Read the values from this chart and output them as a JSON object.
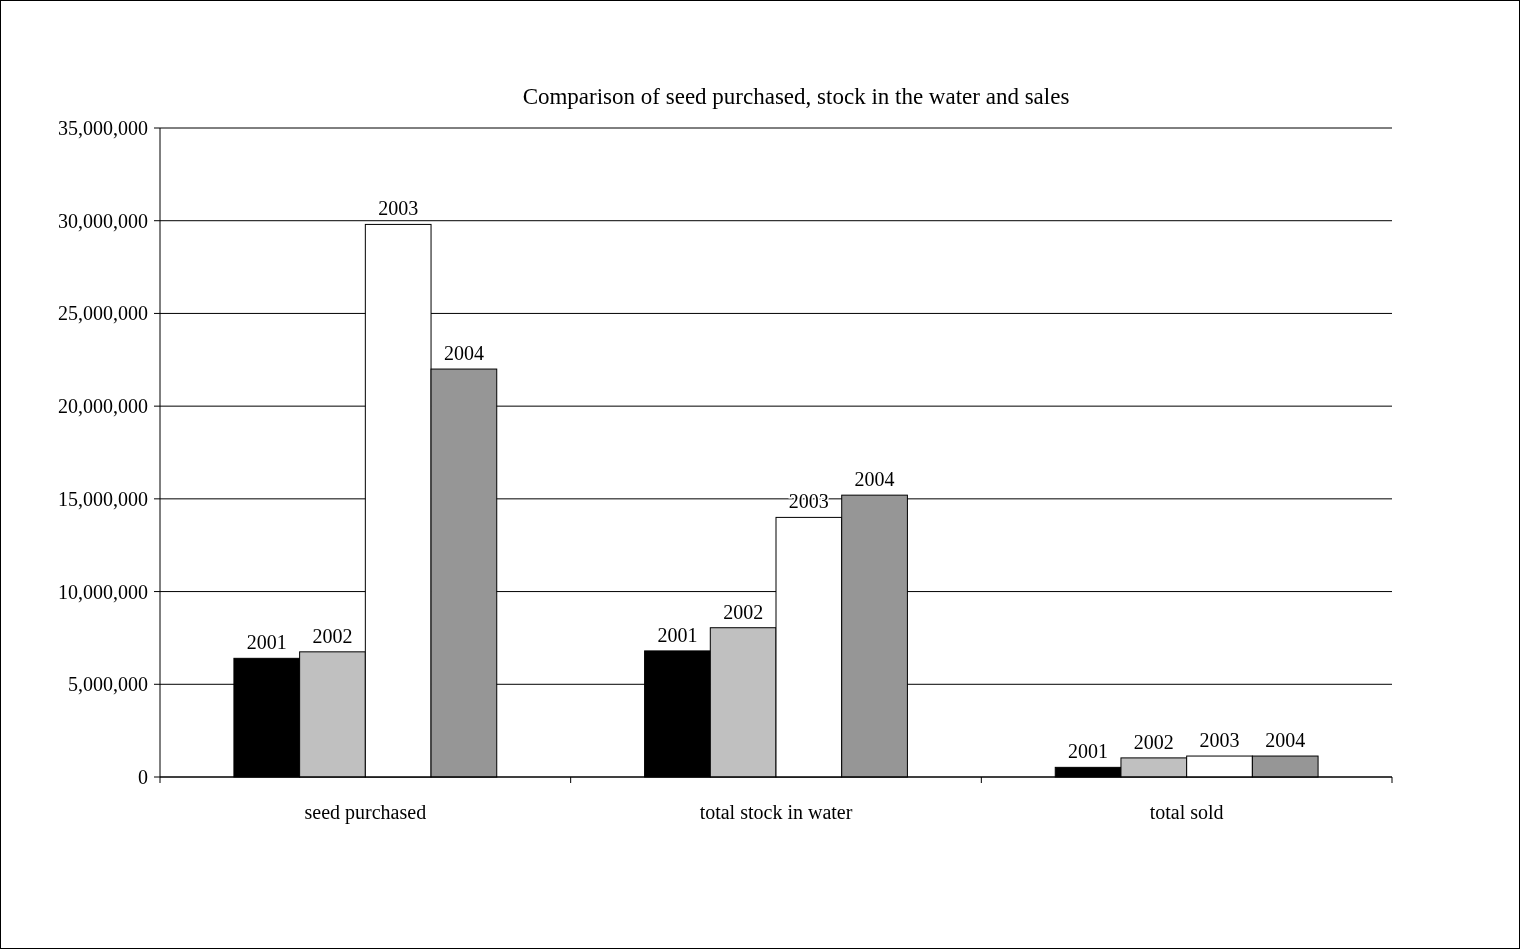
{
  "chart_data": {
    "type": "bar",
    "title": "Comparison of seed purchased, stock in the water and sales",
    "categories": [
      "seed purchased",
      "total stock in water",
      "total sold"
    ],
    "series": [
      {
        "name": "2001",
        "color": "#000000",
        "values": [
          6400000,
          6800000,
          520000
        ]
      },
      {
        "name": "2002",
        "color": "#c0c0c0",
        "values": [
          6750000,
          8050000,
          1030000
        ]
      },
      {
        "name": "2003",
        "color": "#ffffff",
        "values": [
          29800000,
          14000000,
          1130000
        ]
      },
      {
        "name": "2004",
        "color": "#969696",
        "values": [
          22000000,
          15200000,
          1130000
        ]
      }
    ],
    "ylim": [
      0,
      35000000
    ],
    "yticks": [
      {
        "value": 0,
        "label": "0"
      },
      {
        "value": 5000000,
        "label": "5,000,000"
      },
      {
        "value": 10000000,
        "label": "10,000,000"
      },
      {
        "value": 15000000,
        "label": "15,000,000"
      },
      {
        "value": 20000000,
        "label": "20,000,000"
      },
      {
        "value": 25000000,
        "label": "25,000,000"
      },
      {
        "value": 30000000,
        "label": "30,000,000"
      },
      {
        "value": 35000000,
        "label": "35,000,000"
      }
    ],
    "grid": "y"
  }
}
